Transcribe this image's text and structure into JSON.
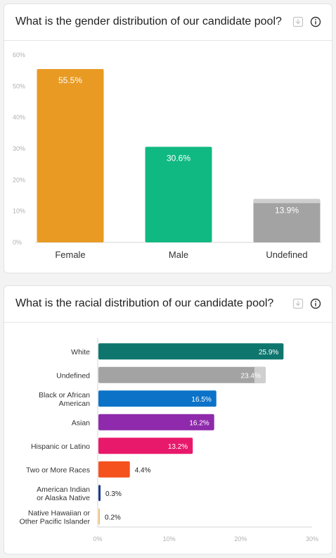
{
  "gender_card": {
    "title": "What is the gender distribution of our candidate pool?",
    "icons": [
      "download-icon",
      "info-icon"
    ]
  },
  "race_card": {
    "title": "What is the racial distribution of our candidate pool?",
    "icons": [
      "download-icon",
      "info-icon"
    ]
  },
  "chart_data": [
    {
      "type": "bar",
      "orientation": "vertical",
      "title": "What is the gender distribution of our candidate pool?",
      "categories": [
        "Female",
        "Male",
        "Undefined"
      ],
      "values": [
        55.5,
        30.6,
        13.9
      ],
      "value_labels": [
        "55.5%",
        "30.6%",
        "13.9%"
      ],
      "colors": [
        "#e89a22",
        "#10b981",
        "#a3a3a3"
      ],
      "y_ticks": [
        "0%",
        "10%",
        "20%",
        "30%",
        "40%",
        "50%",
        "60%"
      ],
      "ylim": [
        0,
        60
      ],
      "grid": false
    },
    {
      "type": "bar",
      "orientation": "horizontal",
      "title": "What is the racial distribution of our candidate pool?",
      "categories": [
        [
          "White"
        ],
        [
          "Undefined"
        ],
        [
          "Black or African",
          "American"
        ],
        [
          "Asian"
        ],
        [
          "Hispanic or Latino"
        ],
        [
          "Two or More Races"
        ],
        [
          "American Indian",
          "or Alaska Native"
        ],
        [
          "Native Hawaiian or",
          "Other Pacific Islander"
        ]
      ],
      "values": [
        25.9,
        23.4,
        16.5,
        16.2,
        13.2,
        4.4,
        0.3,
        0.2
      ],
      "value_labels": [
        "25.9%",
        "23.4%",
        "16.5%",
        "16.2%",
        "13.2%",
        "4.4%",
        "0.3%",
        "0.2%"
      ],
      "colors": [
        "#0f766e",
        "#a3a3a3",
        "#0b72c8",
        "#8e2aab",
        "#e8196b",
        "#f4511e",
        "#1e3a8a",
        "#f6c26b"
      ],
      "x_ticks": [
        "0%",
        "10%",
        "20%",
        "30%"
      ],
      "xlim": [
        0,
        30
      ],
      "grid": false
    }
  ]
}
